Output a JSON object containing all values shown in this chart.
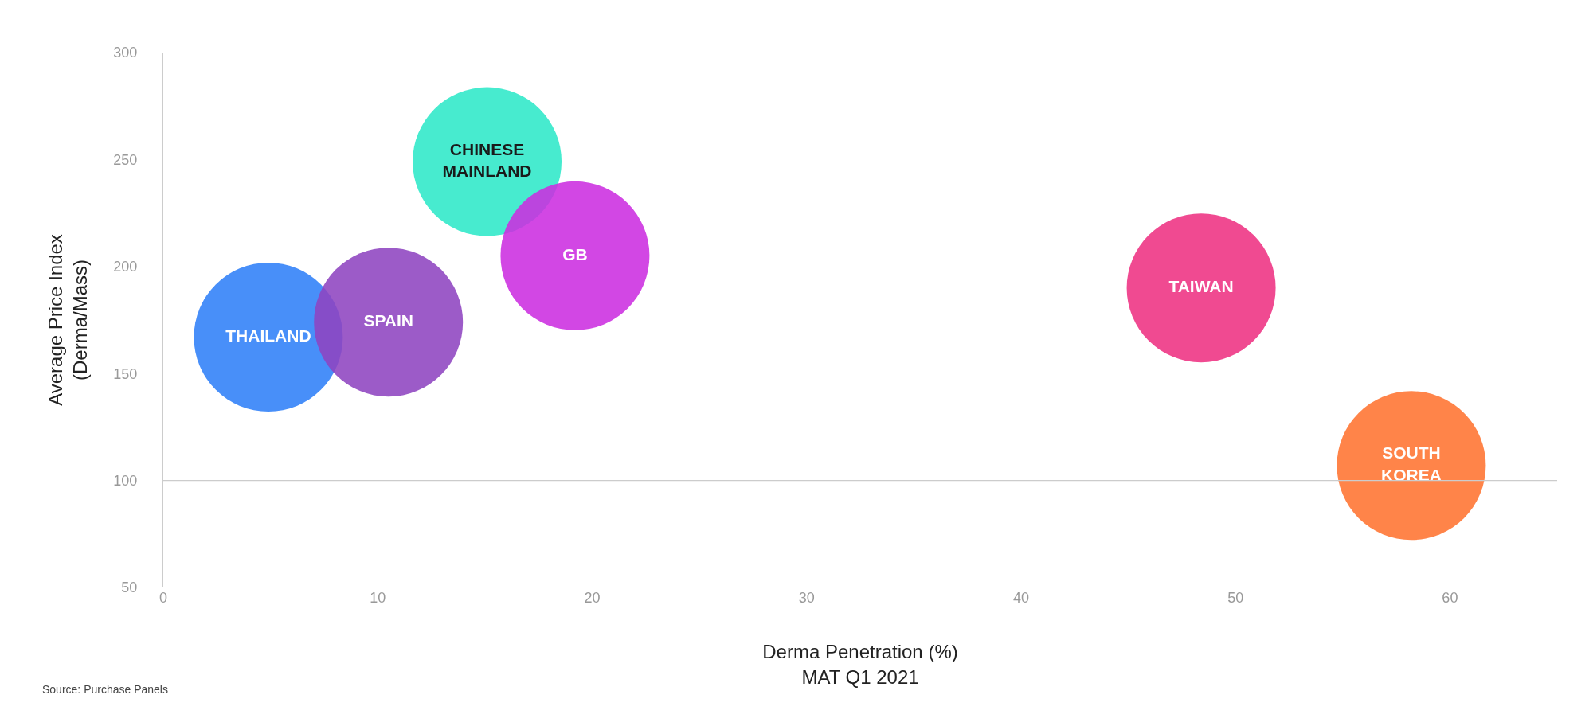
{
  "chart_data": {
    "type": "bubble",
    "xlabel": "Derma Penetration (%)\nMAT Q1 2021",
    "ylabel": "Average Price Index\n(Derma/Mass)",
    "annotations": [
      "Source: Purchase Panels"
    ],
    "xlim": [
      0,
      65
    ],
    "xticks": [
      0,
      10,
      20,
      30,
      40,
      50,
      60
    ],
    "ylim": [
      50,
      300
    ],
    "yticks": [
      50,
      100,
      150,
      200,
      250,
      300
    ],
    "grid": false,
    "legend": false,
    "ref_lines": [
      {
        "axis": "y",
        "value": 100,
        "color": "#cccccc"
      }
    ],
    "series": [
      {
        "name": "THAILAND",
        "color": "#2f7ff8",
        "x": [
          4.9
        ],
        "values": [
          167
        ],
        "sizes": [
          1
        ]
      },
      {
        "name": "SPAIN",
        "color": "#8e44c0",
        "x": [
          10.5
        ],
        "values": [
          174
        ],
        "sizes": [
          1
        ]
      },
      {
        "name": "CHINESE\nMAINLAND",
        "color": "#2ee8c8",
        "x": [
          15.1
        ],
        "values": [
          249
        ],
        "sizes": [
          1
        ]
      },
      {
        "name": "GB",
        "color": "#cc2ee0",
        "x": [
          19.2
        ],
        "values": [
          205
        ],
        "sizes": [
          1
        ]
      },
      {
        "name": "TAIWAN",
        "color": "#ee3182",
        "x": [
          48.4
        ],
        "values": [
          190
        ],
        "sizes": [
          1
        ]
      },
      {
        "name": "SOUTH\nKOREA",
        "color": "#ff7330",
        "x": [
          58.2
        ],
        "values": [
          107
        ],
        "sizes": [
          1
        ]
      }
    ]
  }
}
